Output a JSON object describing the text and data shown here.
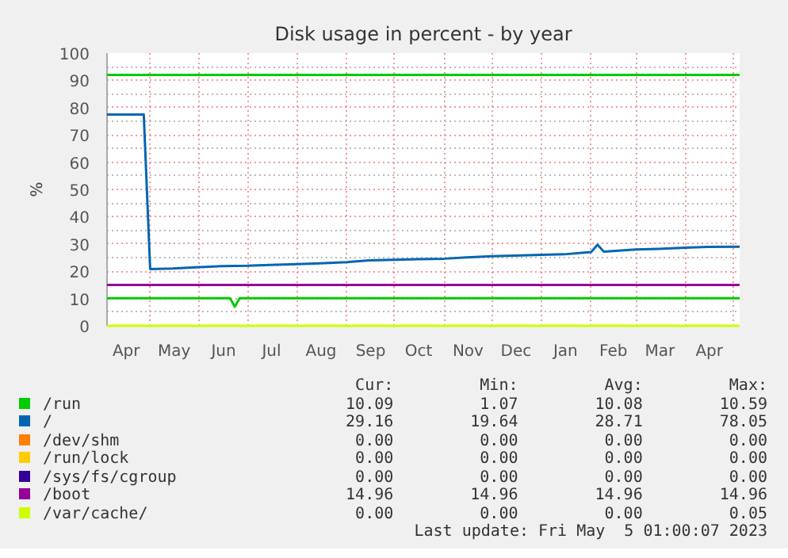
{
  "chart_data": {
    "type": "line",
    "title": "Disk usage in percent - by year",
    "ylabel": "%",
    "xlim": [
      "2022-04-04",
      "2023-05-05"
    ],
    "ylim": [
      0,
      100
    ],
    "xticks": [
      {
        "value": "2022-04-16",
        "label": "Apr"
      },
      {
        "value": "2022-05-01",
        "label": null
      },
      {
        "value": "2022-05-16",
        "label": "May"
      },
      {
        "value": "2022-06-01",
        "label": null
      },
      {
        "value": "2022-06-16",
        "label": "Jun"
      },
      {
        "value": "2022-07-01",
        "label": null
      },
      {
        "value": "2022-07-16",
        "label": "Jul"
      },
      {
        "value": "2022-08-01",
        "label": null
      },
      {
        "value": "2022-08-16",
        "label": "Aug"
      },
      {
        "value": "2022-09-01",
        "label": null
      },
      {
        "value": "2022-09-16",
        "label": "Sep"
      },
      {
        "value": "2022-10-01",
        "label": null
      },
      {
        "value": "2022-10-16",
        "label": "Oct"
      },
      {
        "value": "2022-11-01",
        "label": null
      },
      {
        "value": "2022-11-16",
        "label": "Nov"
      },
      {
        "value": "2022-12-01",
        "label": null
      },
      {
        "value": "2022-12-16",
        "label": "Dec"
      },
      {
        "value": "2023-01-01",
        "label": null
      },
      {
        "value": "2023-01-16",
        "label": "Jan"
      },
      {
        "value": "2023-02-01",
        "label": null
      },
      {
        "value": "2023-02-15",
        "label": "Feb"
      },
      {
        "value": "2023-03-01",
        "label": null
      },
      {
        "value": "2023-03-16",
        "label": "Mar"
      },
      {
        "value": "2023-04-01",
        "label": null
      },
      {
        "value": "2023-04-16",
        "label": "Apr"
      },
      {
        "value": "2023-05-01",
        "label": null
      }
    ],
    "yticks": [
      0,
      {
        "value": 5,
        "label": null
      },
      10,
      {
        "value": 15,
        "label": null
      },
      20,
      {
        "value": 25,
        "label": null
      },
      30,
      {
        "value": 35,
        "label": null
      },
      40,
      {
        "value": 45,
        "label": null
      },
      50,
      {
        "value": 55,
        "label": null
      },
      60,
      {
        "value": 65,
        "label": null
      },
      70,
      {
        "value": 75,
        "label": null
      },
      80,
      {
        "value": 85,
        "label": null
      },
      90,
      {
        "value": 95,
        "label": null
      },
      100
    ],
    "grid": true,
    "legend": "bottom",
    "line_style": "solid",
    "ref_lines": [
      {
        "axis": "y",
        "value": 92,
        "color": "#00cc00"
      }
    ],
    "series": [
      {
        "name": "/run",
        "color": "#00cc00",
        "x": [
          "2022-04-04",
          "2022-06-20",
          "2022-06-23",
          "2022-06-26",
          "2023-05-05"
        ],
        "values": [
          10.1,
          10.1,
          7.0,
          10.1,
          10.1
        ]
      },
      {
        "name": "/",
        "color": "#0066b3",
        "x": [
          "2022-04-04",
          "2022-04-15",
          "2022-04-27",
          "2022-05-01",
          "2022-05-15",
          "2022-06-01",
          "2022-06-15",
          "2022-07-01",
          "2022-07-15",
          "2022-08-01",
          "2022-08-15",
          "2022-09-01",
          "2022-09-15",
          "2022-10-01",
          "2022-10-15",
          "2022-11-01",
          "2022-11-15",
          "2022-12-01",
          "2022-12-15",
          "2023-01-01",
          "2023-01-15",
          "2023-02-01",
          "2023-02-05",
          "2023-02-09",
          "2023-03-01",
          "2023-03-15",
          "2023-04-01",
          "2023-04-15",
          "2023-05-05"
        ],
        "values": [
          77.5,
          77.5,
          77.5,
          20.8,
          21.0,
          21.5,
          21.9,
          22.0,
          22.3,
          22.6,
          22.9,
          23.3,
          24.0,
          24.2,
          24.4,
          24.6,
          25.1,
          25.5,
          25.7,
          26.0,
          26.2,
          27.0,
          29.7,
          27.2,
          28.0,
          28.2,
          28.6,
          28.9,
          29.0
        ]
      },
      {
        "name": "/dev/shm",
        "color": "#ff8000"
      },
      {
        "name": "/run/lock",
        "color": "#ffcc00"
      },
      {
        "name": "/sys/fs/cgroup",
        "color": "#330099"
      },
      {
        "name": "/boot",
        "color": "#990099",
        "x": [
          "2022-04-04",
          "2023-05-05"
        ],
        "values": [
          15,
          15
        ]
      },
      {
        "name": "/var/cache/",
        "color": "#ccff00",
        "x": [
          "2022-04-04",
          "2023-05-05"
        ],
        "values": [
          0,
          0
        ]
      }
    ],
    "annotations": [
      "Cur:",
      "Min:",
      "Avg:",
      "Max:",
      "10.09",
      "1.07",
      "10.08",
      "10.59",
      "29.16",
      "19.64",
      "28.71",
      "78.05",
      "0.00",
      "0.00",
      "0.00",
      "0.00",
      "0.00",
      "0.00",
      "0.00",
      "0.00",
      "0.00",
      "0.00",
      "0.00",
      "0.00",
      "14.96",
      "14.96",
      "14.96",
      "14.96",
      "0.00",
      "0.00",
      "0.00",
      "0.05",
      "Last update: Fri May  5 01:00:07 2023"
    ]
  }
}
